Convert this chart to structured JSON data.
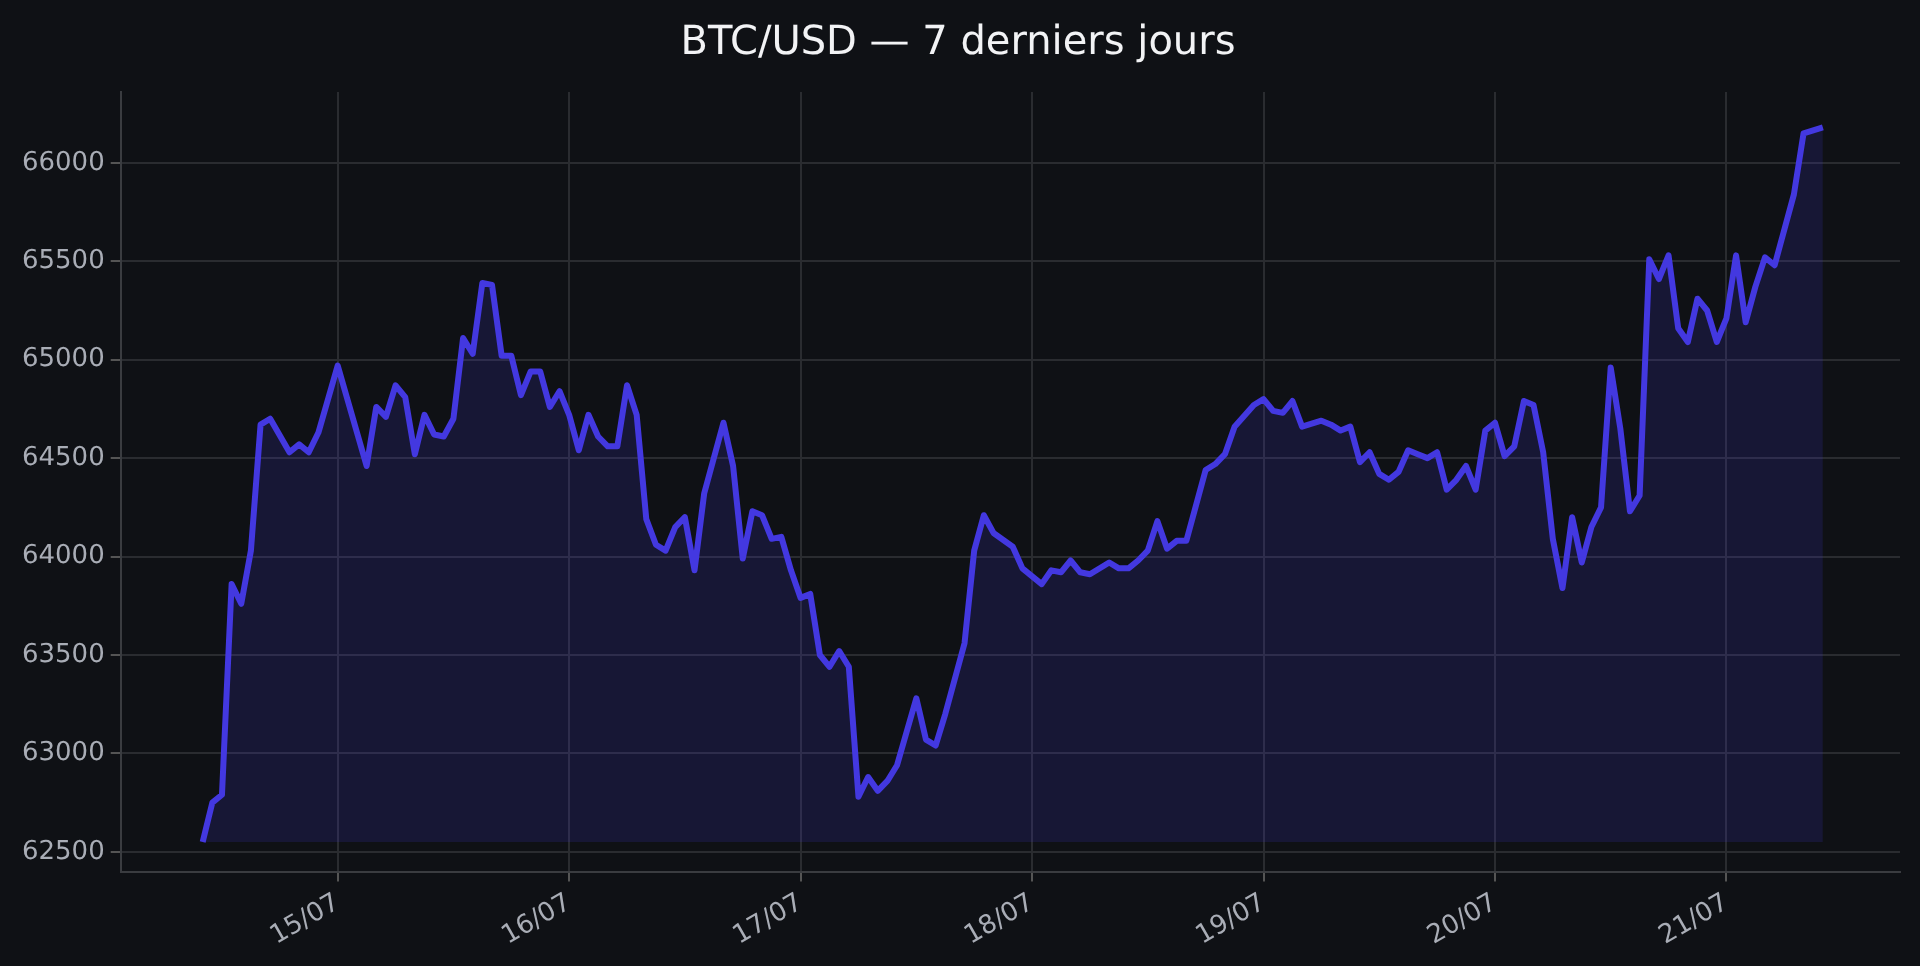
{
  "chart_data": {
    "type": "area",
    "title": "BTC/USD — 7 derniers jours",
    "x": [
      "--07-14T10:00",
      "--07-14T11:00",
      "--07-14T12:00",
      "--07-14T13:00",
      "--07-14T14:00",
      "--07-14T15:00",
      "--07-14T16:00",
      "--07-14T17:00",
      "--07-14T19:00",
      "--07-14T20:00",
      "--07-14T21:00",
      "--07-14T22:00",
      "--07-15T00:00",
      "--07-15T03:00",
      "--07-15T04:00",
      "--07-15T05:00",
      "--07-15T06:00",
      "--07-15T07:00",
      "--07-15T08:00",
      "--07-15T09:00",
      "--07-15T10:00",
      "--07-15T11:00",
      "--07-15T12:00",
      "--07-15T13:00",
      "--07-15T14:00",
      "--07-15T15:00",
      "--07-15T16:00",
      "--07-15T17:00",
      "--07-15T18:00",
      "--07-15T19:00",
      "--07-15T20:00",
      "--07-15T21:00",
      "--07-15T22:00",
      "--07-15T23:00",
      "--07-16T00:00",
      "--07-16T01:00",
      "--07-16T02:00",
      "--07-16T03:00",
      "--07-16T04:00",
      "--07-16T05:00",
      "--07-16T06:00",
      "--07-16T07:00",
      "--07-16T08:00",
      "--07-16T09:00",
      "--07-16T10:00",
      "--07-16T11:00",
      "--07-16T12:00",
      "--07-16T13:00",
      "--07-16T14:00",
      "--07-16T16:00",
      "--07-16T17:00",
      "--07-16T18:00",
      "--07-16T19:00",
      "--07-16T20:00",
      "--07-16T21:00",
      "--07-16T22:00",
      "--07-16T23:00",
      "--07-17T00:00",
      "--07-17T01:00",
      "--07-17T02:00",
      "--07-17T03:00",
      "--07-17T04:00",
      "--07-17T05:00",
      "--07-17T06:00",
      "--07-17T07:00",
      "--07-17T08:00",
      "--07-17T09:00",
      "--07-17T10:00",
      "--07-17T12:00",
      "--07-17T13:00",
      "--07-17T14:00",
      "--07-17T15:00",
      "--07-17T17:00",
      "--07-17T18:00",
      "--07-17T19:00",
      "--07-17T20:00",
      "--07-17T22:00",
      "--07-17T23:00",
      "--07-18T01:00",
      "--07-18T02:00",
      "--07-18T03:00",
      "--07-18T04:00",
      "--07-18T05:00",
      "--07-18T06:00",
      "--07-18T08:00",
      "--07-18T09:00",
      "--07-18T10:00",
      "--07-18T11:00",
      "--07-18T12:00",
      "--07-18T13:00",
      "--07-18T14:00",
      "--07-18T15:00",
      "--07-18T16:00",
      "--07-18T18:00",
      "--07-18T19:00",
      "--07-18T20:00",
      "--07-18T21:00",
      "--07-18T23:00",
      "--07-19T00:00",
      "--07-19T01:00",
      "--07-19T02:00",
      "--07-19T03:00",
      "--07-19T04:00",
      "--07-19T06:00",
      "--07-19T07:00",
      "--07-19T08:00",
      "--07-19T09:00",
      "--07-19T10:00",
      "--07-19T11:00",
      "--07-19T12:00",
      "--07-19T13:00",
      "--07-19T14:00",
      "--07-19T15:00",
      "--07-19T16:00",
      "--07-19T17:00",
      "--07-19T18:00",
      "--07-19T19:00",
      "--07-19T20:00",
      "--07-19T21:00",
      "--07-19T22:00",
      "--07-19T23:00",
      "--07-20T00:00",
      "--07-20T01:00",
      "--07-20T02:00",
      "--07-20T03:00",
      "--07-20T04:00",
      "--07-20T05:00",
      "--07-20T06:00",
      "--07-20T07:00",
      "--07-20T08:00",
      "--07-20T09:00",
      "--07-20T10:00",
      "--07-20T11:00",
      "--07-20T12:00",
      "--07-20T13:00",
      "--07-20T14:00",
      "--07-20T15:00",
      "--07-20T16:00",
      "--07-20T17:00",
      "--07-20T18:00",
      "--07-20T19:00",
      "--07-20T20:00",
      "--07-20T21:00",
      "--07-20T22:00",
      "--07-20T23:00",
      "--07-21T00:00",
      "--07-21T01:00",
      "--07-21T02:00",
      "--07-21T03:00",
      "--07-21T04:00",
      "--07-21T05:00",
      "--07-21T07:00",
      "--07-21T08:00",
      "--07-21T10:00"
    ],
    "values": [
      62550,
      62750,
      62790,
      63860,
      63760,
      64030,
      64670,
      64700,
      64530,
      64570,
      64530,
      64630,
      64970,
      64460,
      64760,
      64710,
      64870,
      64810,
      64520,
      64720,
      64620,
      64610,
      64700,
      65110,
      65030,
      65390,
      65380,
      65020,
      65020,
      64820,
      64940,
      64940,
      64760,
      64840,
      64720,
      64540,
      64720,
      64610,
      64560,
      64560,
      64870,
      64720,
      64190,
      64060,
      64030,
      64150,
      64200,
      63930,
      64320,
      64680,
      64460,
      63990,
      64230,
      64210,
      64090,
      64100,
      63930,
      63790,
      63810,
      63500,
      63440,
      63520,
      63440,
      62780,
      62880,
      62810,
      62860,
      62940,
      63280,
      63070,
      63040,
      63200,
      63560,
      64030,
      64210,
      64120,
      64050,
      63940,
      63860,
      63930,
      63920,
      63980,
      63920,
      63910,
      63970,
      63940,
      63940,
      63980,
      64030,
      64180,
      64040,
      64080,
      64080,
      64440,
      64470,
      64520,
      64660,
      64770,
      64800,
      64740,
      64730,
      64790,
      64660,
      64690,
      64670,
      64640,
      64660,
      64480,
      64530,
      64420,
      64390,
      64430,
      64540,
      64520,
      64500,
      64530,
      64340,
      64390,
      64460,
      64340,
      64640,
      64680,
      64510,
      64560,
      64790,
      64770,
      64530,
      64090,
      63840,
      64200,
      63970,
      64150,
      64250,
      64960,
      64650,
      64230,
      64310,
      65510,
      65410,
      65530,
      65160,
      65090,
      65310,
      65250,
      65090,
      65210,
      65530,
      65190,
      65370,
      65520,
      65480,
      65840,
      66150,
      66180
    ],
    "color": "#4338e0",
    "xlim": [
      "--07-14T01:30",
      "--07-21T18:00"
    ],
    "xticks": [
      {
        "value": "--07-15",
        "label": "15/07"
      },
      {
        "value": "--07-16",
        "label": "16/07"
      },
      {
        "value": "--07-17",
        "label": "17/07"
      },
      {
        "value": "--07-18",
        "label": "18/07"
      },
      {
        "value": "--07-19",
        "label": "19/07"
      },
      {
        "value": "--07-20",
        "label": "20/07"
      },
      {
        "value": "--07-21",
        "label": "21/07"
      }
    ],
    "ylim": [
      62400,
      66360
    ],
    "yticks": [
      62500,
      63000,
      63500,
      64000,
      64500,
      65000,
      65500,
      66000
    ],
    "grid": true,
    "marker": "none",
    "line_style": "solid"
  }
}
